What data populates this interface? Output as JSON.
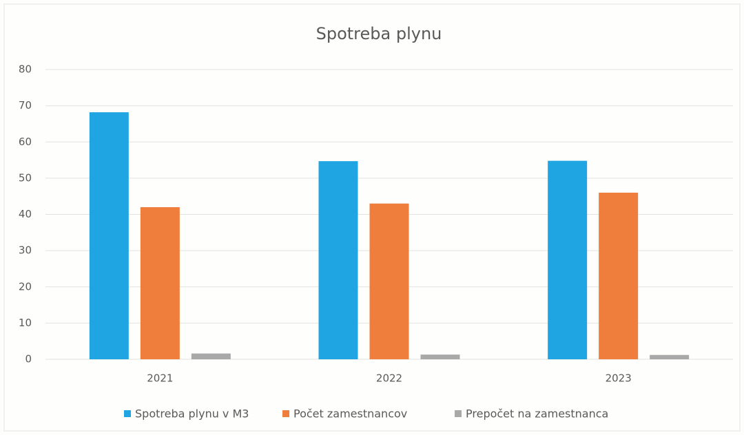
{
  "chart_data": {
    "type": "bar",
    "title": "Spotreba plynu",
    "categories": [
      "2021",
      "2022",
      "2023"
    ],
    "series": [
      {
        "name": "Spotreba plynu v M3",
        "color": "#1fa6e2",
        "values": [
          68.2,
          54.7,
          54.8
        ]
      },
      {
        "name": "Počet zamestnancov",
        "color": "#ef7d3b",
        "values": [
          42,
          43,
          46
        ]
      },
      {
        "name": "Prepočet na zamestnanca",
        "color": "#a9a9a9",
        "values": [
          1.6,
          1.3,
          1.2
        ]
      }
    ],
    "ylim": [
      0,
      80
    ],
    "yticks": [
      0,
      10,
      20,
      30,
      40,
      50,
      60,
      70,
      80
    ],
    "grid": true,
    "legend": "bottom"
  }
}
